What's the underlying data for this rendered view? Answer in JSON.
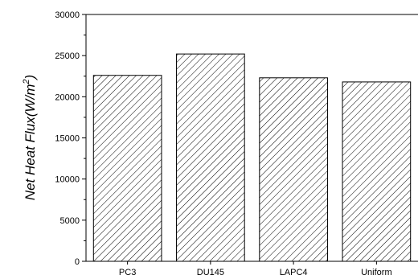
{
  "chart_data": {
    "type": "bar",
    "title": "",
    "xlabel": "",
    "ylabel_main": "Net Heat Flux(W/m",
    "ylabel_sup": "2",
    "ylabel_close": ")",
    "categories": [
      "PC3",
      "DU145",
      "LAPC4",
      "Uniform"
    ],
    "values": [
      22600,
      25200,
      22300,
      21800
    ],
    "ylim": [
      0,
      30000
    ],
    "yticks": [
      0,
      5000,
      10000,
      15000,
      20000,
      25000,
      30000
    ],
    "ytick_labels": [
      "0",
      "5000",
      "10000",
      "15000",
      "20000",
      "25000",
      "30000"
    ],
    "bar_fill": "hatched",
    "bar_color": "#000000",
    "grid": false,
    "legend": "none"
  }
}
